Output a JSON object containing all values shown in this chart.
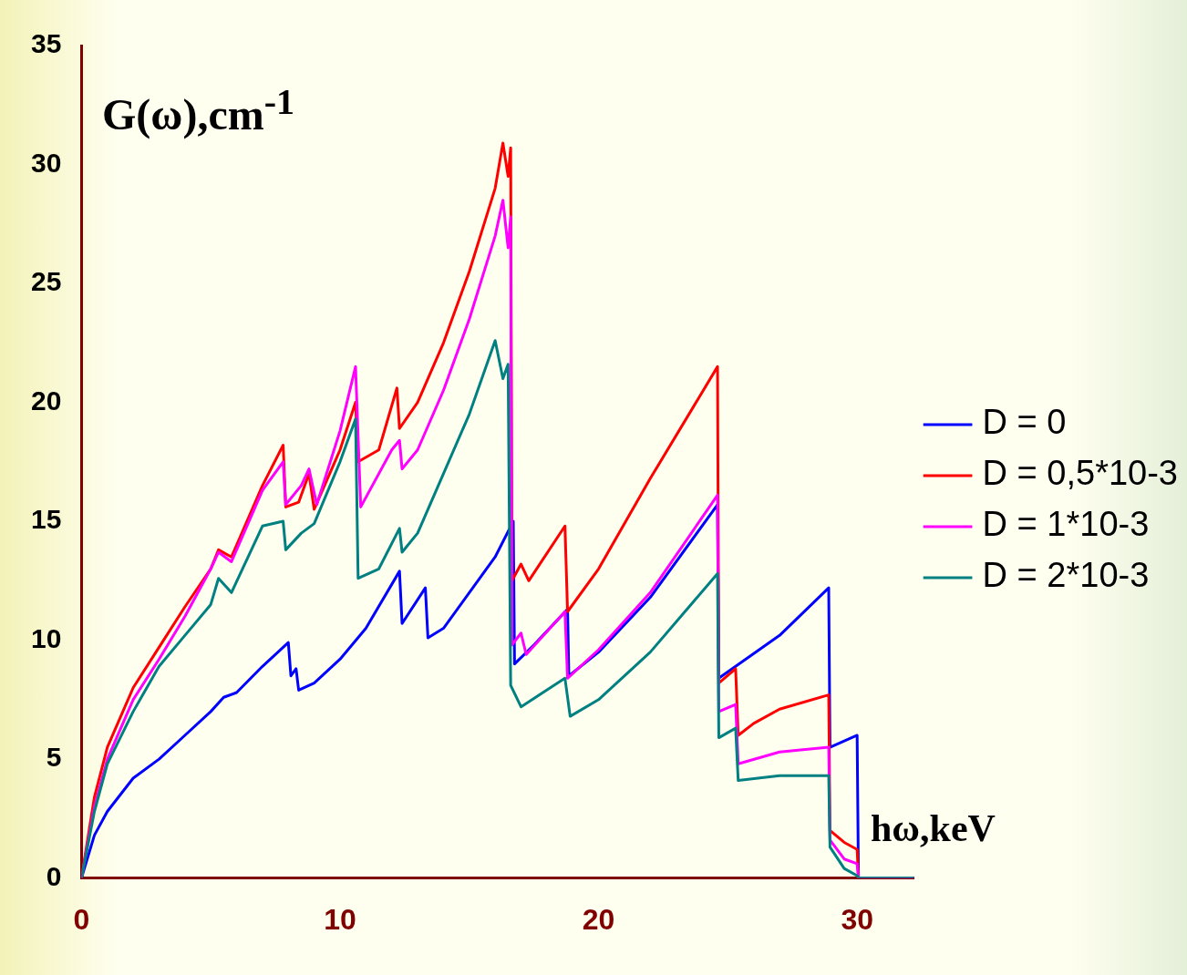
{
  "chart_data": {
    "type": "line",
    "xlabel": "hω,keV",
    "ylabel": "G(ω),cm$^{-1}$",
    "xlim": [
      0,
      32.2
    ],
    "ylim": [
      0,
      35
    ],
    "xticks": [
      0,
      10,
      20,
      30
    ],
    "yticks": [
      0,
      5,
      10,
      15,
      20,
      25,
      30,
      35
    ],
    "grid": false,
    "legend": "right",
    "marker": "none",
    "line_style": "solid",
    "series": [
      {
        "name": "D = 0",
        "color": "#0000ff",
        "x": [
          0,
          0.5,
          1,
          2,
          3,
          4,
          5,
          5.5,
          6,
          7,
          7.8,
          8,
          8.1,
          8.3,
          8.4,
          9,
          10,
          11,
          12.3,
          12.4,
          13.3,
          13.4,
          14,
          15,
          16,
          16.7,
          16.75,
          17.5,
          18.8,
          18.85,
          20,
          22,
          24.6,
          24.65,
          25.3,
          27,
          28.9,
          28.95,
          30,
          30.05,
          32.2
        ],
        "values": [
          0,
          1.8,
          2.8,
          4.2,
          5,
          6,
          7,
          7.6,
          7.8,
          8.9,
          9.7,
          9.9,
          8.5,
          8.8,
          7.9,
          8.2,
          9.2,
          10.5,
          12.9,
          10.7,
          12.2,
          10.1,
          10.5,
          12,
          13.5,
          15,
          9,
          9.8,
          11.3,
          8.5,
          9.5,
          11.8,
          15.7,
          8.4,
          8.9,
          10.2,
          12.2,
          5.5,
          6,
          0,
          0
        ]
      },
      {
        "name": "D = 0,5*10-3",
        "color": "#ff0000",
        "x": [
          0,
          0.5,
          1,
          2,
          3,
          4,
          5,
          5.3,
          5.8,
          7,
          7.8,
          7.9,
          8.4,
          8.8,
          9,
          10,
          10.6,
          10.7,
          11.5,
          12.2,
          12.3,
          13,
          14,
          15,
          16,
          16.3,
          16.5,
          16.6,
          16.65,
          17,
          17.3,
          18.7,
          18.8,
          20,
          22,
          24.6,
          24.65,
          25.3,
          25.4,
          26,
          27,
          28.9,
          28.95,
          29.5,
          30,
          30.05,
          32.2
        ],
        "values": [
          0,
          3.4,
          5.5,
          8,
          9.7,
          11.4,
          13,
          13.8,
          13.5,
          16.5,
          18.2,
          15.6,
          15.8,
          17,
          15.5,
          18,
          20,
          17.5,
          18,
          20.6,
          18.9,
          20,
          22.5,
          25.5,
          29,
          30.9,
          29.5,
          30.7,
          12.5,
          13.2,
          12.5,
          14.8,
          11.2,
          13,
          16.8,
          21.5,
          8.2,
          8.8,
          6,
          6.5,
          7.1,
          7.7,
          2,
          1.5,
          1.2,
          0,
          0
        ]
      },
      {
        "name": "D = 1*10-3",
        "color": "#ff00ff",
        "x": [
          0,
          0.5,
          1,
          2,
          3,
          4,
          5,
          5.3,
          5.8,
          7,
          7.8,
          7.9,
          8.5,
          8.8,
          9.1,
          10,
          10.6,
          10.8,
          12,
          12.3,
          12.4,
          13,
          14,
          15,
          16,
          16.3,
          16.5,
          16.6,
          16.65,
          17,
          17.2,
          18.7,
          18.8,
          20,
          22,
          24.6,
          24.65,
          25.3,
          25.4,
          27,
          28.9,
          28.95,
          29.5,
          30,
          30.05,
          32.2
        ],
        "values": [
          0,
          3,
          5,
          7.5,
          9.2,
          11,
          13,
          13.7,
          13.3,
          16.3,
          17.5,
          15.7,
          16.5,
          17.2,
          15.7,
          18.8,
          21.5,
          15.6,
          18,
          18.4,
          17.2,
          18,
          20.5,
          23.5,
          27,
          28.5,
          26.5,
          27.8,
          9.8,
          10.3,
          9.4,
          11.2,
          8.4,
          9.6,
          12,
          16.1,
          7,
          7.3,
          4.8,
          5.3,
          5.5,
          1.6,
          0.8,
          0.6,
          0,
          0
        ]
      },
      {
        "name": "D = 2*10-3",
        "color": "#008080",
        "x": [
          0,
          0.5,
          1,
          2,
          3,
          4,
          5,
          5.3,
          5.8,
          7,
          7.8,
          7.9,
          8.5,
          9,
          10,
          10.6,
          10.7,
          11.5,
          12.3,
          12.4,
          13,
          14,
          15,
          16,
          16.3,
          16.5,
          16.6,
          17,
          18.7,
          18.9,
          20,
          22,
          24.6,
          24.65,
          25.3,
          25.4,
          27,
          28.9,
          28.95,
          29.5,
          30,
          30.05,
          32.2
        ],
        "values": [
          0,
          2.8,
          4.8,
          7,
          8.9,
          10.2,
          11.5,
          12.6,
          12,
          14.8,
          15,
          13.8,
          14.5,
          14.9,
          17.5,
          19.3,
          12.6,
          13,
          14.7,
          13.7,
          14.5,
          17,
          19.5,
          22.6,
          21,
          21.6,
          8.1,
          7.2,
          8.4,
          6.8,
          7.5,
          9.5,
          12.8,
          5.9,
          6.3,
          4.1,
          4.3,
          4.3,
          1.3,
          0.4,
          0.1,
          0,
          0
        ]
      }
    ]
  }
}
